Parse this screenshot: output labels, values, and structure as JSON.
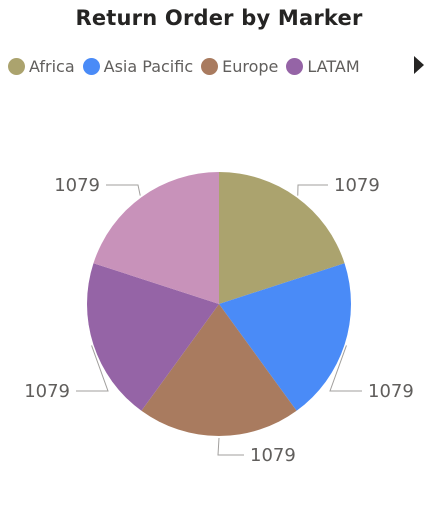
{
  "chart_data": {
    "type": "pie",
    "title": "Return Order by Marker",
    "categories": [
      "Africa",
      "Asia Pacific",
      "Europe",
      "LATAM",
      ""
    ],
    "values": [
      1079,
      1079,
      1079,
      1079,
      1079
    ],
    "colors": [
      "#ABA36E",
      "#4A8BF7",
      "#A97B5F",
      "#9564A6",
      "#C892BA"
    ],
    "data_labels": [
      "1079",
      "1079",
      "1079",
      "1079",
      "1079"
    ],
    "legend": {
      "placement": "top-left",
      "items": [
        {
          "label": "Africa",
          "color": "#ABA36E"
        },
        {
          "label": "Asia Pacific",
          "color": "#4A8BF7"
        },
        {
          "label": "Europe",
          "color": "#A97B5F"
        },
        {
          "label": "LATAM",
          "color": "#9564A6"
        }
      ]
    }
  },
  "icons": {
    "legend_next": "play-right-arrow-icon"
  }
}
